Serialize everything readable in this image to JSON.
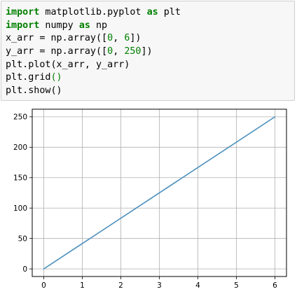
{
  "code": {
    "lines": [
      [
        {
          "t": "import",
          "c": "kw"
        },
        {
          "t": " matplotlib.pyplot ",
          "c": "plain"
        },
        {
          "t": "as",
          "c": "kw"
        },
        {
          "t": " plt",
          "c": "plain"
        }
      ],
      [
        {
          "t": "import",
          "c": "kw"
        },
        {
          "t": " numpy ",
          "c": "plain"
        },
        {
          "t": "as",
          "c": "kw"
        },
        {
          "t": " np",
          "c": "plain"
        }
      ],
      [
        {
          "t": "x_arr = np.array([",
          "c": "plain"
        },
        {
          "t": "0",
          "c": "num"
        },
        {
          "t": ", ",
          "c": "plain"
        },
        {
          "t": "6",
          "c": "num"
        },
        {
          "t": "])",
          "c": "plain"
        }
      ],
      [
        {
          "t": "y_arr = np.array([",
          "c": "plain"
        },
        {
          "t": "0",
          "c": "num"
        },
        {
          "t": ", ",
          "c": "plain"
        },
        {
          "t": "250",
          "c": "num"
        },
        {
          "t": "])",
          "c": "plain"
        }
      ],
      [
        {
          "t": "plt.plot(x_arr, y_arr)",
          "c": "plain"
        }
      ],
      [
        {
          "t": "plt.grid",
          "c": "plain"
        },
        {
          "t": "()",
          "c": "call"
        }
      ],
      [
        {
          "t": "plt.show()",
          "c": "plain"
        }
      ]
    ]
  },
  "chart_data": {
    "type": "line",
    "x": [
      0,
      6
    ],
    "series": [
      {
        "values": [
          0,
          250
        ],
        "color": "#4c90be"
      }
    ],
    "xlim": [
      -0.3,
      6.3
    ],
    "ylim": [
      -12.5,
      262.5
    ],
    "xticks": [
      0,
      1,
      2,
      3,
      4,
      5,
      6
    ],
    "yticks": [
      0,
      50,
      100,
      150,
      200,
      250
    ],
    "grid": true,
    "colors": {
      "line": "#4c90be",
      "grid": "#b0b0b0",
      "axis": "#000000"
    }
  }
}
